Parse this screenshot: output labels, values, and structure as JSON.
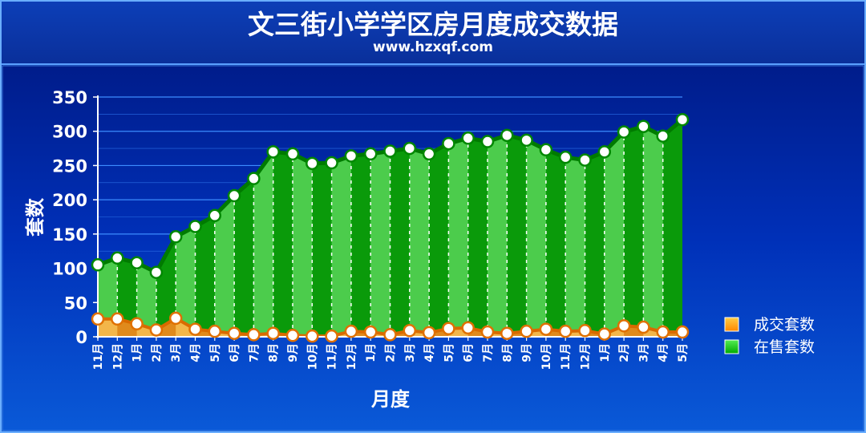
{
  "chart_data": {
    "type": "area",
    "title": "文三街小学学区房月度成交数据",
    "subtitle": "www.hzxqf.com",
    "xlabel": "月度",
    "ylabel": "套数",
    "ylim": [
      0,
      350
    ],
    "yticks": [
      "0",
      "50",
      "100",
      "150",
      "200",
      "250",
      "300",
      "350"
    ],
    "categories": [
      "11月",
      "12月",
      "1月",
      "2月",
      "3月",
      "4月",
      "5月",
      "6月",
      "7月",
      "8月",
      "9月",
      "10月",
      "11月",
      "12月",
      "1月",
      "2月",
      "3月",
      "4月",
      "5月",
      "6月",
      "7月",
      "8月",
      "9月",
      "10月",
      "11月",
      "12月",
      "1月",
      "2月",
      "3月",
      "4月",
      "5月"
    ],
    "grid": true,
    "legend_position": "right",
    "series": [
      {
        "name": "在售套数",
        "color": "#00cc00",
        "values": [
          105,
          115,
          108,
          94,
          146,
          161,
          177,
          206,
          231,
          270,
          267,
          253,
          254,
          264,
          267,
          271,
          275,
          267,
          282,
          290,
          285,
          294,
          287,
          273,
          262,
          258,
          270,
          299,
          307,
          293,
          317
        ]
      },
      {
        "name": "成交套数",
        "color": "#ff8800",
        "values": [
          26,
          26,
          19,
          10,
          27,
          11,
          8,
          5,
          3,
          5,
          2,
          1,
          1,
          8,
          7,
          3,
          9,
          6,
          12,
          13,
          7,
          5,
          8,
          11,
          8,
          9,
          4,
          16,
          14,
          7,
          7
        ]
      }
    ]
  }
}
